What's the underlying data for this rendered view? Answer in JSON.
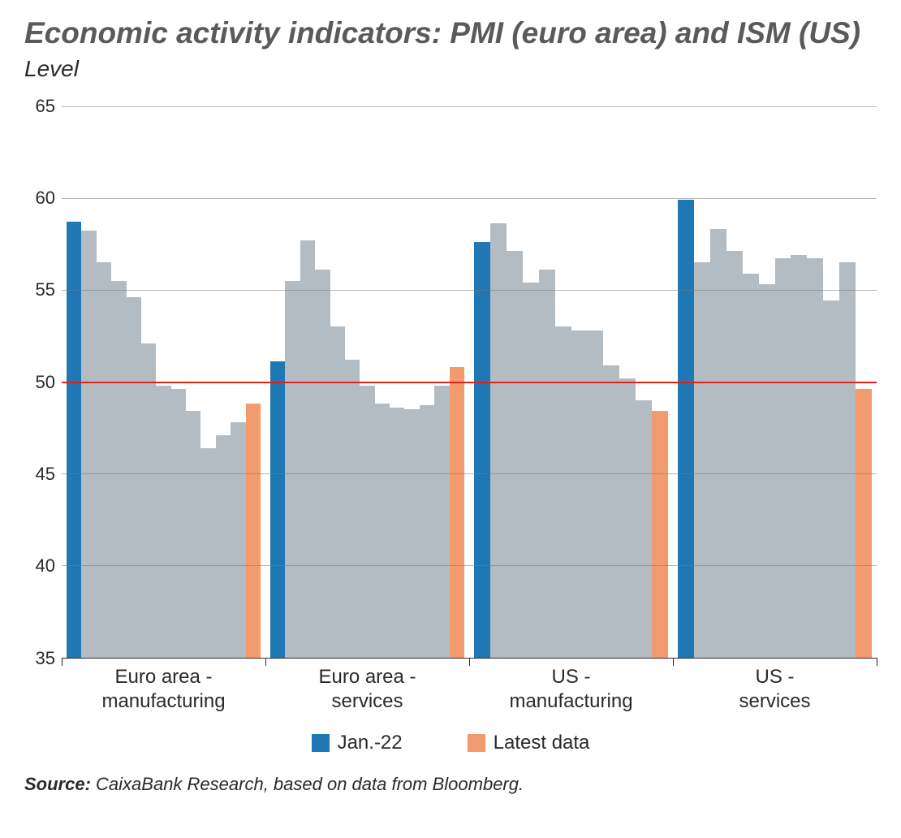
{
  "title": "Economic activity indicators: PMI (euro area) and ISM (US)",
  "subtitle": "Level",
  "source_label": "Source:",
  "source_text": " CaixaBank Research, based on data from Bloomberg.",
  "chart": {
    "type": "bar",
    "ylim": [
      35,
      65
    ],
    "yticks": [
      35,
      40,
      45,
      50,
      55,
      60,
      65
    ],
    "reference_line": {
      "value": 50,
      "color": "#e2231a",
      "width": 2
    },
    "grid_color": "#7a7a7a",
    "background_color": "#ffffff",
    "tick_fontsize": 22,
    "xlabel_fontsize": 24,
    "colors": {
      "jan22": "#1f77b4",
      "intermediate": "#b3bcc3",
      "latest": "#f19b6f"
    },
    "legend": [
      {
        "label": "Jan.-22",
        "color_key": "jan22"
      },
      {
        "label": "Latest data",
        "color_key": "latest"
      }
    ],
    "groups": [
      {
        "label": "Euro area - manufacturing",
        "bars": [
          {
            "value": 58.7,
            "color_key": "jan22"
          },
          {
            "value": 58.2,
            "color_key": "intermediate"
          },
          {
            "value": 56.5,
            "color_key": "intermediate"
          },
          {
            "value": 55.5,
            "color_key": "intermediate"
          },
          {
            "value": 54.6,
            "color_key": "intermediate"
          },
          {
            "value": 52.1,
            "color_key": "intermediate"
          },
          {
            "value": 49.8,
            "color_key": "intermediate"
          },
          {
            "value": 49.6,
            "color_key": "intermediate"
          },
          {
            "value": 48.4,
            "color_key": "intermediate"
          },
          {
            "value": 46.4,
            "color_key": "intermediate"
          },
          {
            "value": 47.1,
            "color_key": "intermediate"
          },
          {
            "value": 47.8,
            "color_key": "intermediate"
          },
          {
            "value": 48.8,
            "color_key": "latest"
          }
        ]
      },
      {
        "label": "Euro area - services",
        "bars": [
          {
            "value": 51.1,
            "color_key": "jan22"
          },
          {
            "value": 55.5,
            "color_key": "intermediate"
          },
          {
            "value": 57.7,
            "color_key": "intermediate"
          },
          {
            "value": 56.1,
            "color_key": "intermediate"
          },
          {
            "value": 53.0,
            "color_key": "intermediate"
          },
          {
            "value": 51.2,
            "color_key": "intermediate"
          },
          {
            "value": 49.8,
            "color_key": "intermediate"
          },
          {
            "value": 48.8,
            "color_key": "intermediate"
          },
          {
            "value": 48.6,
            "color_key": "intermediate"
          },
          {
            "value": 48.5,
            "color_key": "intermediate"
          },
          {
            "value": 48.7,
            "color_key": "intermediate"
          },
          {
            "value": 49.8,
            "color_key": "intermediate"
          },
          {
            "value": 50.8,
            "color_key": "latest"
          }
        ]
      },
      {
        "label": "US - manufacturing",
        "bars": [
          {
            "value": 57.6,
            "color_key": "jan22"
          },
          {
            "value": 58.6,
            "color_key": "intermediate"
          },
          {
            "value": 57.1,
            "color_key": "intermediate"
          },
          {
            "value": 55.4,
            "color_key": "intermediate"
          },
          {
            "value": 56.1,
            "color_key": "intermediate"
          },
          {
            "value": 53.0,
            "color_key": "intermediate"
          },
          {
            "value": 52.8,
            "color_key": "intermediate"
          },
          {
            "value": 52.8,
            "color_key": "intermediate"
          },
          {
            "value": 50.9,
            "color_key": "intermediate"
          },
          {
            "value": 50.2,
            "color_key": "intermediate"
          },
          {
            "value": 49.0,
            "color_key": "intermediate"
          },
          {
            "value": 48.4,
            "color_key": "latest"
          }
        ]
      },
      {
        "label": "US - services",
        "bars": [
          {
            "value": 59.9,
            "color_key": "jan22"
          },
          {
            "value": 56.5,
            "color_key": "intermediate"
          },
          {
            "value": 58.3,
            "color_key": "intermediate"
          },
          {
            "value": 57.1,
            "color_key": "intermediate"
          },
          {
            "value": 55.9,
            "color_key": "intermediate"
          },
          {
            "value": 55.3,
            "color_key": "intermediate"
          },
          {
            "value": 56.7,
            "color_key": "intermediate"
          },
          {
            "value": 56.9,
            "color_key": "intermediate"
          },
          {
            "value": 56.7,
            "color_key": "intermediate"
          },
          {
            "value": 54.4,
            "color_key": "intermediate"
          },
          {
            "value": 56.5,
            "color_key": "intermediate"
          },
          {
            "value": 49.6,
            "color_key": "latest"
          }
        ]
      }
    ]
  }
}
